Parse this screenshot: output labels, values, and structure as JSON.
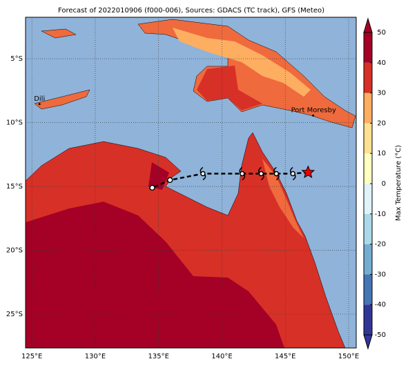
{
  "chart_data": {
    "type": "map",
    "title": "Forecast of 2022010906 (f000-006), Sources: GDACS (TC track), GFS (Meteo)",
    "xlim": [
      124.5,
      150.6
    ],
    "ylim": [
      -27.65,
      -1.75
    ],
    "xticks": [
      {
        "value": 125,
        "label": "125°E"
      },
      {
        "value": 130,
        "label": "130°E"
      },
      {
        "value": 135,
        "label": "135°E"
      },
      {
        "value": 140,
        "label": "140°E"
      },
      {
        "value": 145,
        "label": "145°E"
      },
      {
        "value": 150,
        "label": "150°E"
      }
    ],
    "yticks": [
      {
        "value": -5,
        "label": "5°S"
      },
      {
        "value": -10,
        "label": "10°S"
      },
      {
        "value": -15,
        "label": "15°S"
      },
      {
        "value": -20,
        "label": "20°S"
      },
      {
        "value": -25,
        "label": "25°S"
      }
    ],
    "grid": true,
    "track": {
      "color": "#000000",
      "lon": [
        146.8,
        145.6,
        144.3,
        143.1,
        141.6,
        138.5,
        135.9,
        134.5
      ],
      "lat": [
        -13.9,
        -14.0,
        -14.0,
        -14.0,
        -14.0,
        -14.0,
        -14.5,
        -15.1
      ]
    },
    "cities": [
      {
        "name": "Dili",
        "lon": 125.6,
        "lat": -8.55
      },
      {
        "name": "Port Moresby",
        "lon": 147.2,
        "lat": -9.45
      }
    ],
    "colorbar": {
      "label": "Max Temperature (°C)",
      "lim": [
        -50,
        50
      ],
      "ticks": [
        -50,
        -40,
        -30,
        -20,
        -10,
        0,
        10,
        20,
        30,
        40,
        50
      ],
      "colors": [
        "#313695",
        "#4575b4",
        "#74add1",
        "#abd9e9",
        "#e0f3f8",
        "#ffffbf",
        "#fee090",
        "#fdae61",
        "#d73027",
        "#a50026"
      ]
    }
  }
}
